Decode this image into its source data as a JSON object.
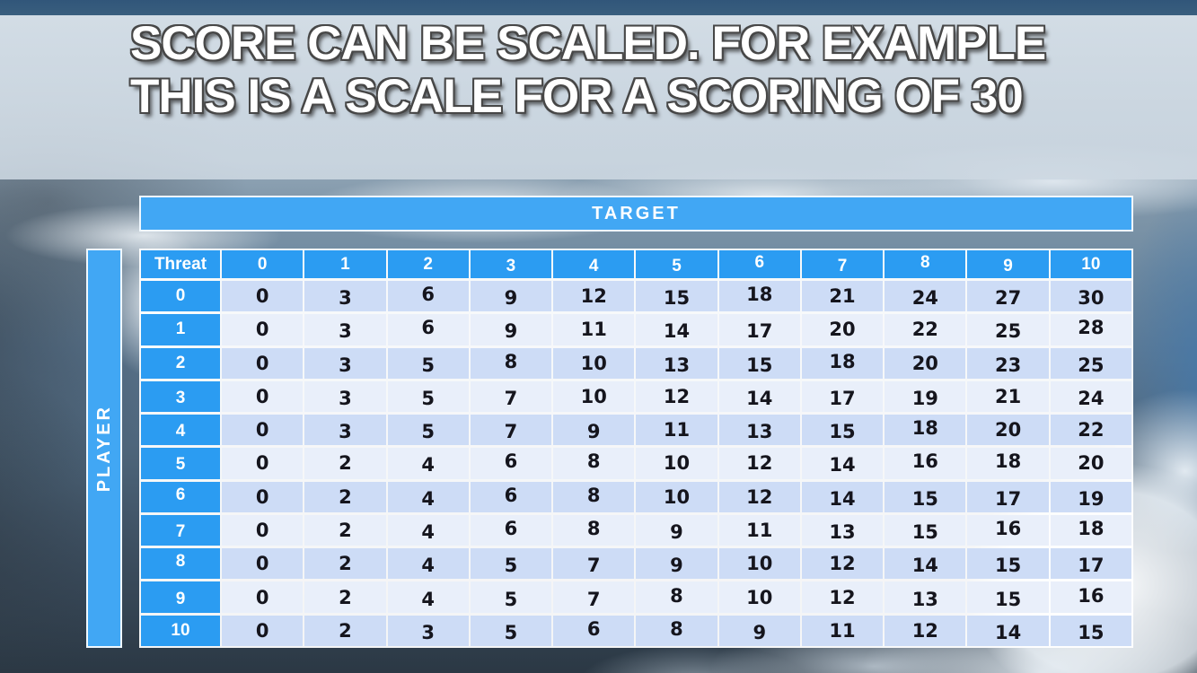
{
  "title": {
    "line1": "SCORE CAN BE SCALED. FOR EXAMPLE",
    "line2": "THIS IS A SCALE FOR A SCORING OF 30"
  },
  "matrix": {
    "target_label": "TARGET",
    "player_label": "PLAYER",
    "corner_label": "Threat",
    "column_headers": [
      "0",
      "1",
      "2",
      "3",
      "4",
      "5",
      "6",
      "7",
      "8",
      "9",
      "10"
    ],
    "row_headers": [
      "0",
      "1",
      "2",
      "3",
      "4",
      "5",
      "6",
      "7",
      "8",
      "9",
      "10"
    ],
    "rows": [
      [
        0,
        3,
        6,
        9,
        12,
        15,
        18,
        21,
        24,
        27,
        30
      ],
      [
        0,
        3,
        6,
        9,
        11,
        14,
        17,
        20,
        22,
        25,
        28
      ],
      [
        0,
        3,
        5,
        8,
        10,
        13,
        15,
        18,
        20,
        23,
        25
      ],
      [
        0,
        3,
        5,
        7,
        10,
        12,
        14,
        17,
        19,
        21,
        24
      ],
      [
        0,
        3,
        5,
        7,
        9,
        11,
        13,
        15,
        18,
        20,
        22
      ],
      [
        0,
        2,
        4,
        6,
        8,
        10,
        12,
        14,
        16,
        18,
        20
      ],
      [
        0,
        2,
        4,
        6,
        8,
        10,
        12,
        14,
        15,
        17,
        19
      ],
      [
        0,
        2,
        4,
        6,
        8,
        9,
        11,
        13,
        15,
        16,
        18
      ],
      [
        0,
        2,
        4,
        5,
        7,
        9,
        10,
        12,
        14,
        15,
        17
      ],
      [
        0,
        2,
        4,
        5,
        7,
        8,
        10,
        12,
        13,
        15,
        16
      ],
      [
        0,
        2,
        3,
        5,
        6,
        8,
        9,
        11,
        12,
        14,
        15
      ]
    ]
  },
  "colors": {
    "head_blue": "#2B9CF2",
    "bar_blue": "#41A7F4",
    "row_dark": "#CDDCF6",
    "row_light": "#E9EFFA",
    "cell_text": "#15151d"
  }
}
